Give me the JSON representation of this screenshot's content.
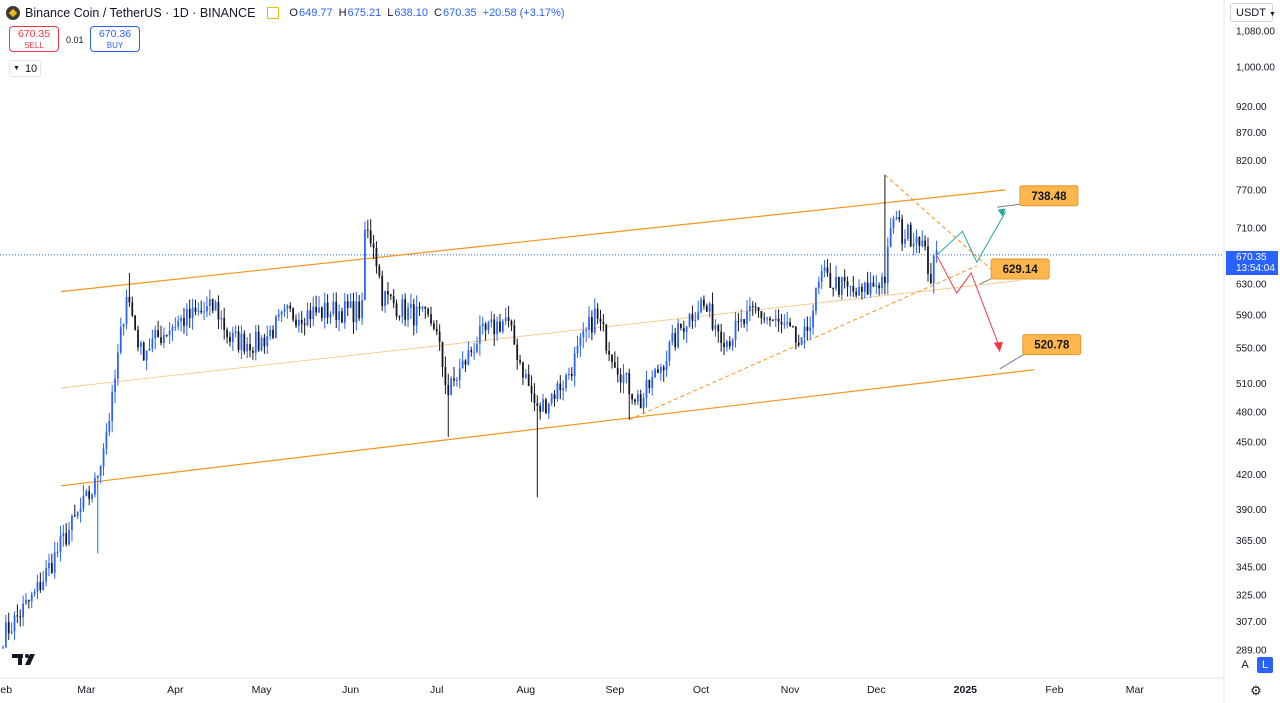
{
  "header": {
    "symbol_title": "Binance Coin / TetherUS · 1D · BINANCE",
    "open_label": "O",
    "open": "649.77",
    "high_label": "H",
    "high": "675.21",
    "low_label": "L",
    "low": "638.10",
    "close_label": "C",
    "close": "670.35",
    "change": "+20.58 (+3.17%)"
  },
  "trade": {
    "sell_price": "670.35",
    "sell_label": "SELL",
    "spread": "0.01",
    "buy_price": "670.36",
    "buy_label": "BUY",
    "quantity": "10"
  },
  "currency": "USDT",
  "last_price": {
    "value": "670.35",
    "countdown": "13:54:04"
  },
  "scale_buttons": {
    "auto": "A",
    "log": "L"
  },
  "colors": {
    "up": "#2962ff",
    "down": "#131722",
    "channel": "#f7931a",
    "target_up": "#26a69a",
    "target_down": "#f23645",
    "label_bg": "#ffb74d"
  },
  "icons": {
    "logo": "tradingview-logo",
    "settings": "gear-icon",
    "favorite": "flag-icon"
  },
  "chart_data": {
    "type": "candlestick",
    "title": "Binance Coin / TetherUS · 1D · BINANCE",
    "y_scale": "log",
    "y_ticks": [
      "1,080.00",
      "1,000.00",
      "920.00",
      "870.00",
      "820.00",
      "770.00",
      "710.00",
      "670.00",
      "630.00",
      "590.00",
      "550.00",
      "510.00",
      "480.00",
      "450.00",
      "420.00",
      "390.00",
      "365.00",
      "345.00",
      "325.00",
      "307.00",
      "289.00"
    ],
    "x_ticks": [
      "Feb",
      "Mar",
      "Apr",
      "May",
      "Jun",
      "Jul",
      "Aug",
      "Sep",
      "Oct",
      "Nov",
      "Dec",
      "2025",
      "Feb",
      "Mar"
    ],
    "x_range": [
      "2024-02-01",
      "2025-03-31"
    ],
    "last_date": "2024-12-22",
    "series_knots": [
      [
        "2024-02-01",
        298
      ],
      [
        "2024-02-12",
        325
      ],
      [
        "2024-02-22",
        365
      ],
      [
        "2024-03-04",
        410
      ],
      [
        "2024-03-10",
        490
      ],
      [
        "2024-03-15",
        620
      ],
      [
        "2024-03-20",
        545
      ],
      [
        "2024-04-01",
        580
      ],
      [
        "2024-04-15",
        600
      ],
      [
        "2024-04-20",
        560
      ],
      [
        "2024-04-30",
        555
      ],
      [
        "2024-05-10",
        590
      ],
      [
        "2024-05-25",
        595
      ],
      [
        "2024-06-05",
        595
      ],
      [
        "2024-06-06",
        705
      ],
      [
        "2024-06-09",
        690
      ],
      [
        "2024-06-12",
        615
      ],
      [
        "2024-06-20",
        595
      ],
      [
        "2024-06-30",
        580
      ],
      [
        "2024-07-05",
        500
      ],
      [
        "2024-07-15",
        560
      ],
      [
        "2024-07-25",
        585
      ],
      [
        "2024-08-05",
        480
      ],
      [
        "2024-08-15",
        515
      ],
      [
        "2024-08-25",
        590
      ],
      [
        "2024-09-05",
        510
      ],
      [
        "2024-09-10",
        490
      ],
      [
        "2024-09-25",
        580
      ],
      [
        "2024-10-01",
        605
      ],
      [
        "2024-10-10",
        560
      ],
      [
        "2024-10-20",
        595
      ],
      [
        "2024-10-31",
        570
      ],
      [
        "2024-11-05",
        550
      ],
      [
        "2024-11-12",
        640
      ],
      [
        "2024-11-25",
        615
      ],
      [
        "2024-12-04",
        640
      ],
      [
        "2024-12-07",
        730
      ],
      [
        "2024-12-10",
        700
      ],
      [
        "2024-12-16",
        700
      ],
      [
        "2024-12-20",
        640
      ],
      [
        "2024-12-22",
        670
      ]
    ],
    "wicks": [
      {
        "date": "2024-03-05",
        "low": 355
      },
      {
        "date": "2024-03-16",
        "high": 645
      },
      {
        "date": "2024-06-06",
        "high": 720
      },
      {
        "date": "2024-07-05",
        "low": 455
      },
      {
        "date": "2024-08-05",
        "low": 400
      },
      {
        "date": "2024-09-06",
        "low": 472
      },
      {
        "date": "2024-12-04",
        "high": 795
      }
    ],
    "annotations": [
      {
        "text": "738.48",
        "price": 738.48
      },
      {
        "text": "629.14",
        "price": 629.14
      },
      {
        "text": "520.78",
        "price": 520.78
      }
    ],
    "channel_lines": [
      {
        "name": "upper",
        "from": [
          "2024-02-01",
          620
        ],
        "to": [
          "2025-01-15",
          770
        ]
      },
      {
        "name": "middle",
        "from": [
          "2024-02-01",
          505
        ],
        "to": [
          "2025-01-20",
          635
        ]
      },
      {
        "name": "lower",
        "from": [
          "2024-02-01",
          410
        ],
        "to": [
          "2025-01-25",
          525
        ]
      }
    ]
  }
}
